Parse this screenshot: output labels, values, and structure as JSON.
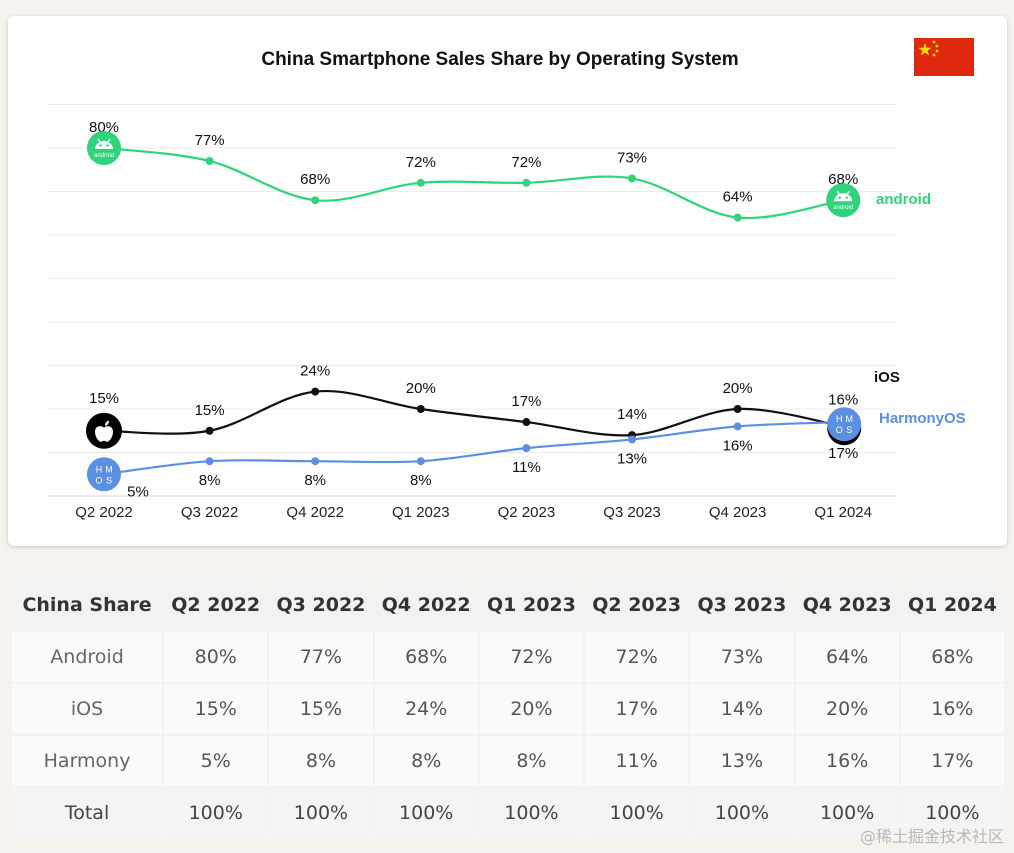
{
  "chart_data": {
    "type": "line",
    "title": "China Smartphone Sales Share by Operating System",
    "categories": [
      "Q2 2022",
      "Q3 2022",
      "Q4 2022",
      "Q1 2023",
      "Q2 2023",
      "Q3 2023",
      "Q4 2023",
      "Q1 2024"
    ],
    "ylim": [
      0,
      90
    ],
    "grid": true,
    "series": [
      {
        "name": "android",
        "values": [
          80,
          77,
          68,
          72,
          72,
          73,
          64,
          68
        ],
        "color": "#2fd47a",
        "labels": [
          "80%",
          "77%",
          "68%",
          "72%",
          "72%",
          "73%",
          "64%",
          "68%"
        ],
        "icon": "android-logo"
      },
      {
        "name": "iOS",
        "values": [
          15,
          15,
          24,
          20,
          17,
          14,
          20,
          16
        ],
        "color": "#111111",
        "labels": [
          "15%",
          "15%",
          "24%",
          "20%",
          "17%",
          "14%",
          "20%",
          "16%"
        ],
        "icon": "apple-logo"
      },
      {
        "name": "HarmonyOS",
        "values": [
          5,
          8,
          8,
          8,
          11,
          13,
          16,
          17
        ],
        "color": "#5b8fe0",
        "labels": [
          "5%",
          "8%",
          "8%",
          "8%",
          "11%",
          "13%",
          "16%",
          "17%"
        ],
        "icon": "harmonyos-logo"
      }
    ],
    "flag": "china-flag-icon"
  },
  "table": {
    "headers": [
      "China Share",
      "Q2 2022",
      "Q3 2022",
      "Q4 2022",
      "Q1 2023",
      "Q2 2023",
      "Q3 2023",
      "Q4 2023",
      "Q1 2024"
    ],
    "rows": [
      [
        "Android",
        "80%",
        "77%",
        "68%",
        "72%",
        "72%",
        "73%",
        "64%",
        "68%"
      ],
      [
        "iOS",
        "15%",
        "15%",
        "24%",
        "20%",
        "17%",
        "14%",
        "20%",
        "16%"
      ],
      [
        "Harmony",
        "5%",
        "8%",
        "8%",
        "8%",
        "11%",
        "13%",
        "16%",
        "17%"
      ],
      [
        "Total",
        "100%",
        "100%",
        "100%",
        "100%",
        "100%",
        "100%",
        "100%",
        "100%"
      ]
    ]
  },
  "android_logo_text": "android",
  "harmony_logo_text": [
    "H",
    "M",
    "O",
    "S"
  ],
  "watermark": "@稀土掘金技术社区"
}
